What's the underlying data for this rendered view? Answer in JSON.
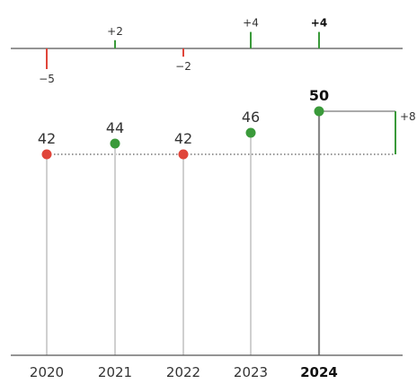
{
  "chart_data": {
    "type": "lollipop",
    "categories": [
      "2020",
      "2021",
      "2022",
      "2023",
      "2024"
    ],
    "values": [
      42,
      44,
      42,
      46,
      50
    ],
    "values_labels": [
      "42",
      "44",
      "42",
      "46",
      "50"
    ],
    "changes": [
      -5,
      2,
      -2,
      4,
      4
    ],
    "change_labels": [
      "−5",
      "+2",
      "−2",
      "+4",
      "+4"
    ],
    "highlight_index": 4,
    "reference_value": 42,
    "difference_label": "+8",
    "colors": {
      "increase": "#3a9a3a",
      "decrease": "#e0453a",
      "stem": "#d0d0d0",
      "stem_highlight": "#888888",
      "axis": "#555555",
      "text": "#333333"
    }
  }
}
